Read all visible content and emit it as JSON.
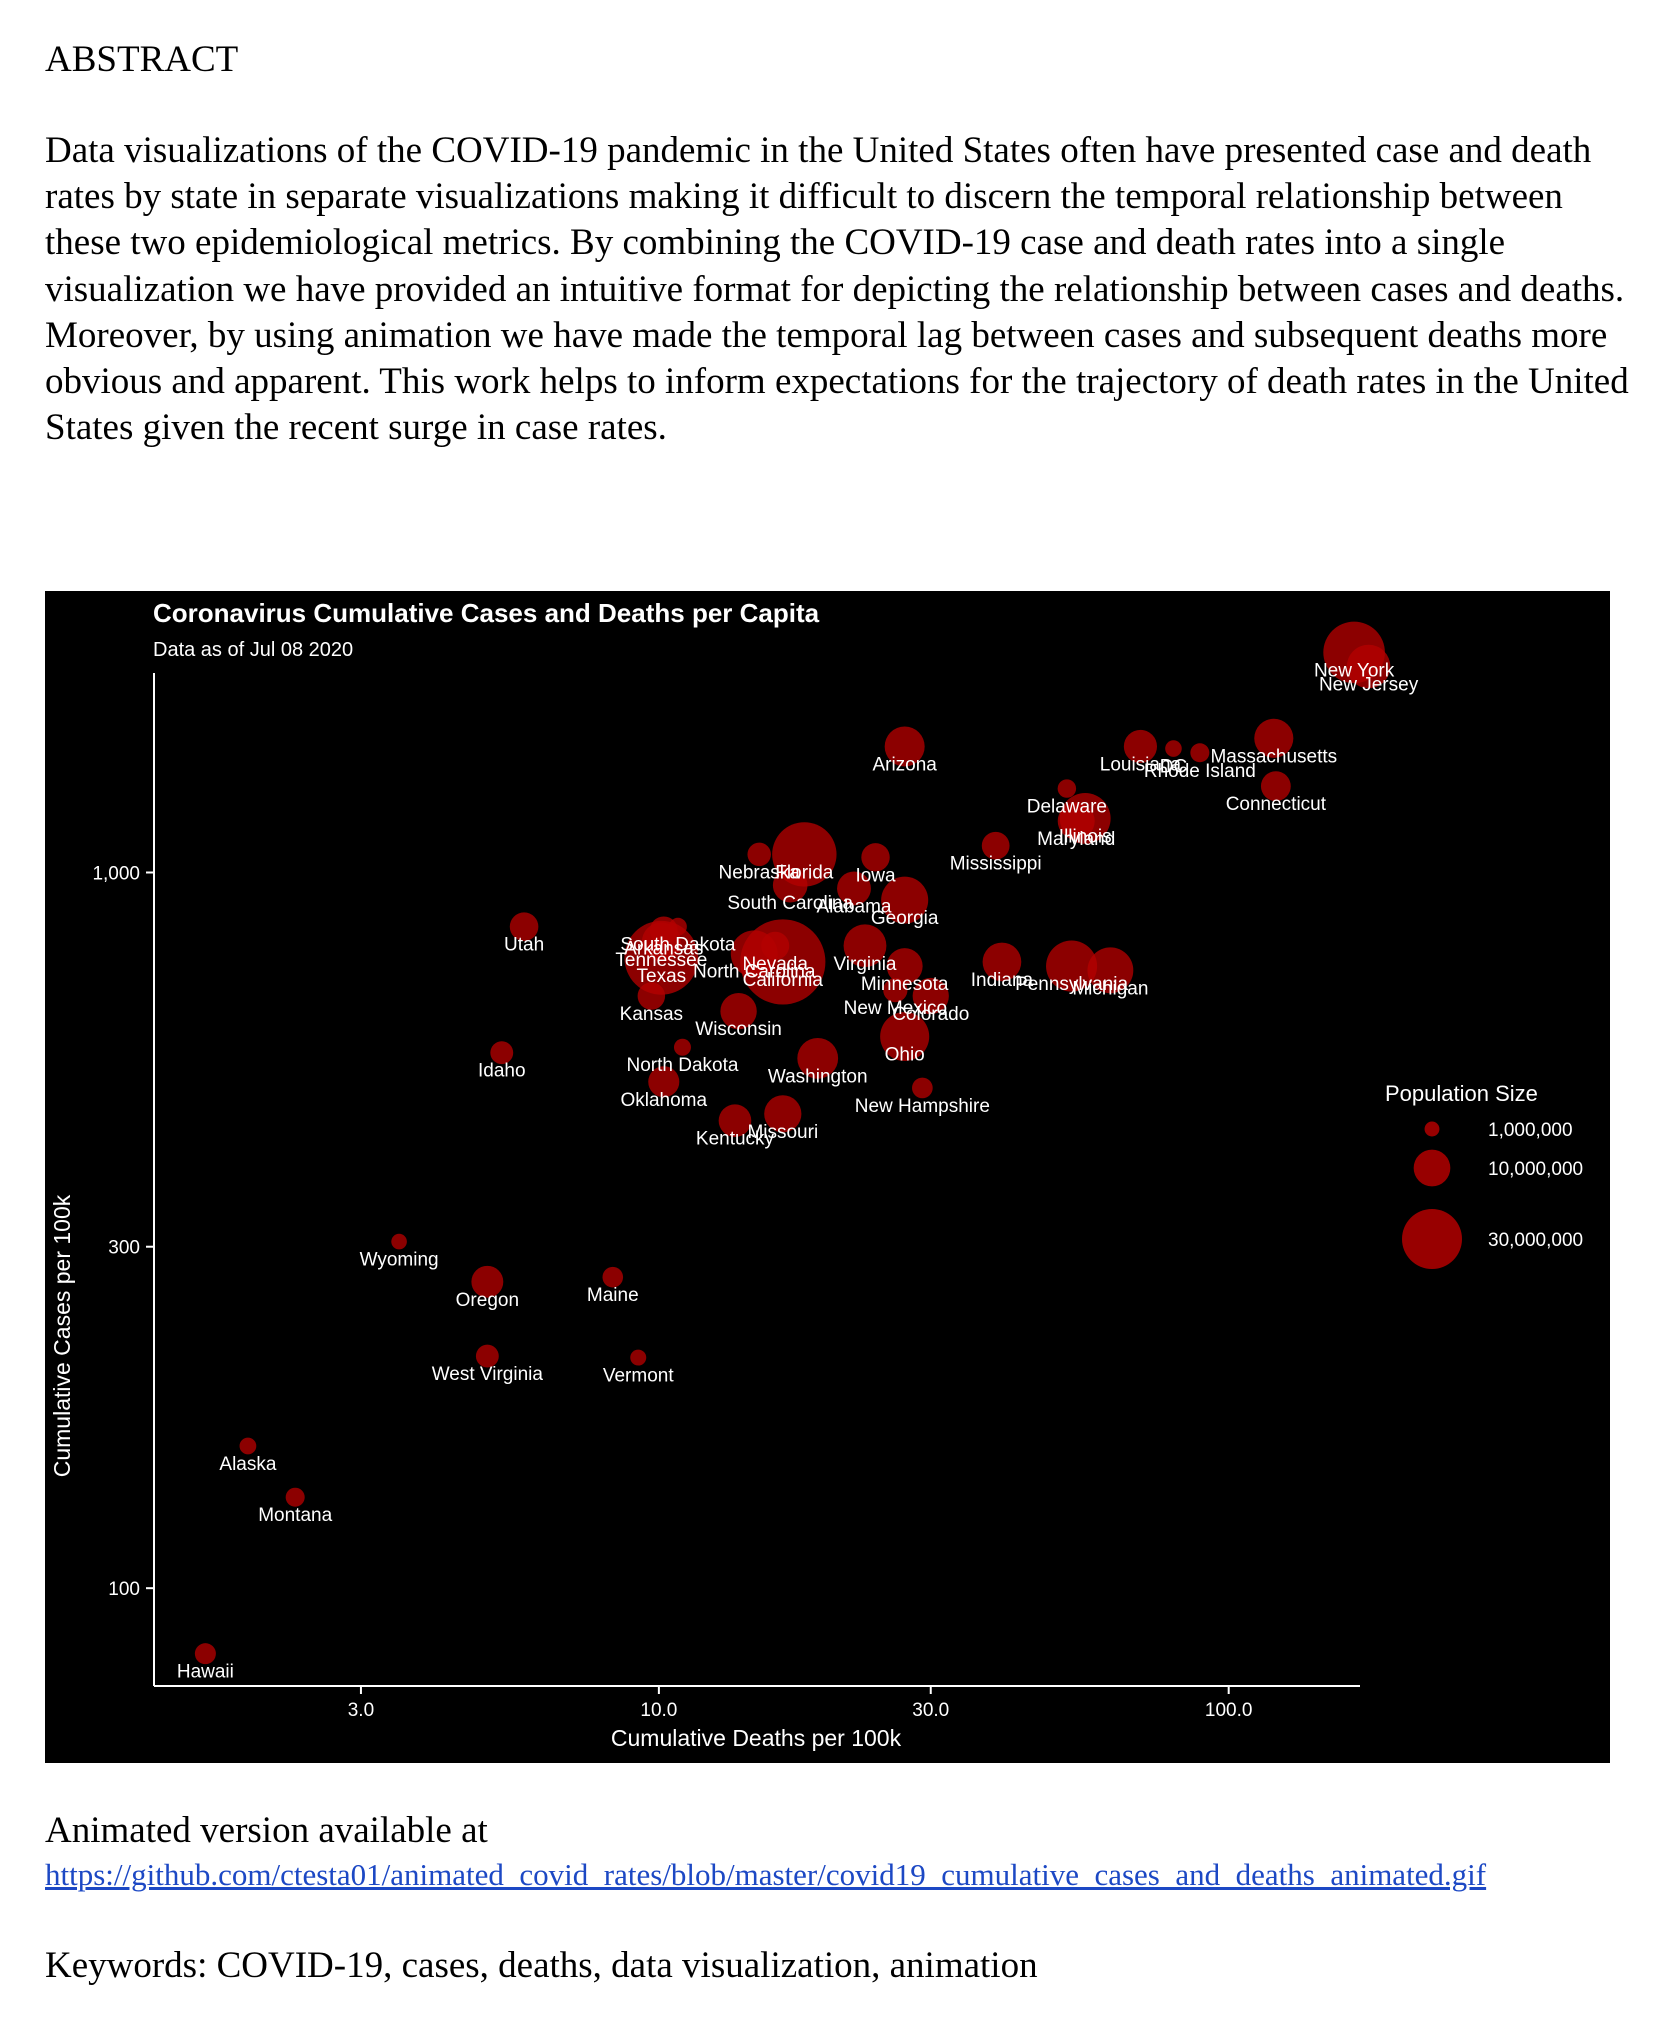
{
  "abstract": {
    "heading": "ABSTRACT",
    "body": "Data visualizations of the COVID-19 pandemic in the United States often have presented case and death rates by state in separate visualizations making it difficult to discern the temporal relationship between these two epidemiological metrics.  By combining the COVID-19 case and death rates into a single visualization we have provided an intuitive format for depicting the relationship between cases and deaths. Moreover, by using animation we have made the temporal lag between cases and subsequent deaths more obvious and apparent.  This work helps to inform expectations for the trajectory of death rates in the United States given the recent surge in case rates."
  },
  "chart_data": {
    "type": "scatter",
    "title": "Coronavirus Cumulative Cases and Deaths per Capita",
    "subtitle": "Data as of Jul 08 2020",
    "xlabel": "Cumulative Deaths per 100k",
    "ylabel": "Cumulative Cases per 100k",
    "x_scale": "log",
    "y_scale": "log",
    "xlim": [
      1.3,
      170
    ],
    "ylim": [
      73,
      1900
    ],
    "x_ticks": [
      {
        "value": 3,
        "label": "3.0"
      },
      {
        "value": 10,
        "label": "10.0"
      },
      {
        "value": 30,
        "label": "30.0"
      },
      {
        "value": 100,
        "label": "100.0"
      }
    ],
    "y_ticks": [
      {
        "value": 100,
        "label": "100"
      },
      {
        "value": 300,
        "label": "300"
      },
      {
        "value": 1000,
        "label": "1,000"
      }
    ],
    "grid": false,
    "point_color": "#b30000",
    "background_color": "#000000",
    "legend": {
      "title": "Population Size",
      "position": "right",
      "entries": [
        {
          "population": 1000000,
          "label": "1,000,000"
        },
        {
          "population": 10000000,
          "label": "10,000,000"
        },
        {
          "population": 30000000,
          "label": "30,000,000"
        }
      ]
    },
    "points": [
      {
        "name": "New York",
        "deaths": 166,
        "cases": 2030,
        "population": 19450000
      },
      {
        "name": "New Jersey",
        "deaths": 176,
        "cases": 1940,
        "population": 8880000
      },
      {
        "name": "Massachusetts",
        "deaths": 120,
        "cases": 1540,
        "population": 6890000
      },
      {
        "name": "DC",
        "deaths": 80,
        "cases": 1490,
        "population": 706000
      },
      {
        "name": "Rhode Island",
        "deaths": 89,
        "cases": 1470,
        "population": 1060000
      },
      {
        "name": "Connecticut",
        "deaths": 121,
        "cases": 1320,
        "population": 3570000
      },
      {
        "name": "Louisiana",
        "deaths": 70,
        "cases": 1500,
        "population": 4650000
      },
      {
        "name": "Delaware",
        "deaths": 52,
        "cases": 1310,
        "population": 973000
      },
      {
        "name": "Illinois",
        "deaths": 56,
        "cases": 1190,
        "population": 12670000
      },
      {
        "name": "Maryland",
        "deaths": 54,
        "cases": 1180,
        "population": 6050000
      },
      {
        "name": "Arizona",
        "deaths": 27,
        "cases": 1500,
        "population": 7280000
      },
      {
        "name": "Mississippi",
        "deaths": 39,
        "cases": 1090,
        "population": 2980000
      },
      {
        "name": "Iowa",
        "deaths": 24,
        "cases": 1050,
        "population": 3160000
      },
      {
        "name": "Florida",
        "deaths": 18,
        "cases": 1060,
        "population": 21480000
      },
      {
        "name": "Nebraska",
        "deaths": 15,
        "cases": 1060,
        "population": 1930000
      },
      {
        "name": "South Carolina",
        "deaths": 17,
        "cases": 960,
        "population": 5150000
      },
      {
        "name": "Alabama",
        "deaths": 22,
        "cases": 950,
        "population": 4900000
      },
      {
        "name": "Georgia",
        "deaths": 27,
        "cases": 915,
        "population": 10620000
      },
      {
        "name": "South Dakota",
        "deaths": 10.8,
        "cases": 840,
        "population": 885000
      },
      {
        "name": "Arkansas",
        "deaths": 10.2,
        "cases": 830,
        "population": 3020000
      },
      {
        "name": "Utah",
        "deaths": 5.8,
        "cases": 840,
        "population": 3210000
      },
      {
        "name": "Tennessee",
        "deaths": 10.1,
        "cases": 800,
        "population": 6830000
      },
      {
        "name": "Texas",
        "deaths": 10.1,
        "cases": 760,
        "population": 29000000
      },
      {
        "name": "North Carolina",
        "deaths": 14.7,
        "cases": 770,
        "population": 10490000
      },
      {
        "name": "California",
        "deaths": 16.5,
        "cases": 750,
        "population": 39510000
      },
      {
        "name": "Nevada",
        "deaths": 16,
        "cases": 790,
        "population": 3080000
      },
      {
        "name": "Virginia",
        "deaths": 23,
        "cases": 790,
        "population": 8540000
      },
      {
        "name": "Minnesota",
        "deaths": 27,
        "cases": 740,
        "population": 5640000
      },
      {
        "name": "Indiana",
        "deaths": 40,
        "cases": 750,
        "population": 6730000
      },
      {
        "name": "Pennsylvania",
        "deaths": 53,
        "cases": 740,
        "population": 12800000
      },
      {
        "name": "Michigan",
        "deaths": 62,
        "cases": 730,
        "population": 9990000
      },
      {
        "name": "New Mexico",
        "deaths": 26,
        "cases": 685,
        "population": 2100000
      },
      {
        "name": "Colorado",
        "deaths": 30,
        "cases": 672,
        "population": 5760000
      },
      {
        "name": "Kansas",
        "deaths": 9.7,
        "cases": 672,
        "population": 2910000
      },
      {
        "name": "Wisconsin",
        "deaths": 13.8,
        "cases": 640,
        "population": 5820000
      },
      {
        "name": "Ohio",
        "deaths": 27,
        "cases": 590,
        "population": 11690000
      },
      {
        "name": "Idaho",
        "deaths": 5.3,
        "cases": 560,
        "population": 1790000
      },
      {
        "name": "North Dakota",
        "deaths": 11,
        "cases": 570,
        "population": 762000
      },
      {
        "name": "Washington",
        "deaths": 19,
        "cases": 550,
        "population": 7610000
      },
      {
        "name": "New Hampshire",
        "deaths": 29,
        "cases": 500,
        "population": 1360000
      },
      {
        "name": "Oklahoma",
        "deaths": 10.2,
        "cases": 510,
        "population": 3960000
      },
      {
        "name": "Missouri",
        "deaths": 16.5,
        "cases": 460,
        "population": 6140000
      },
      {
        "name": "Kentucky",
        "deaths": 13.6,
        "cases": 450,
        "population": 4470000
      },
      {
        "name": "Wyoming",
        "deaths": 3.5,
        "cases": 305,
        "population": 579000
      },
      {
        "name": "Oregon",
        "deaths": 5.0,
        "cases": 268,
        "population": 4220000
      },
      {
        "name": "Maine",
        "deaths": 8.3,
        "cases": 272,
        "population": 1340000
      },
      {
        "name": "West Virginia",
        "deaths": 5.0,
        "cases": 211,
        "population": 1790000
      },
      {
        "name": "Vermont",
        "deaths": 9.2,
        "cases": 210,
        "population": 624000
      },
      {
        "name": "Alaska",
        "deaths": 1.9,
        "cases": 158,
        "population": 731000
      },
      {
        "name": "Montana",
        "deaths": 2.3,
        "cases": 134,
        "population": 1070000
      },
      {
        "name": "Hawaii",
        "deaths": 1.6,
        "cases": 81,
        "population": 1420000
      }
    ]
  },
  "footer": {
    "animated_note": "Animated version available at",
    "link_text": "https://github.com/ctesta01/animated_covid_rates/blob/master/covid19_cumulative_cases_and_deaths_animated.gif",
    "keywords": "Keywords:  COVID-19, cases, deaths, data visualization, animation"
  }
}
